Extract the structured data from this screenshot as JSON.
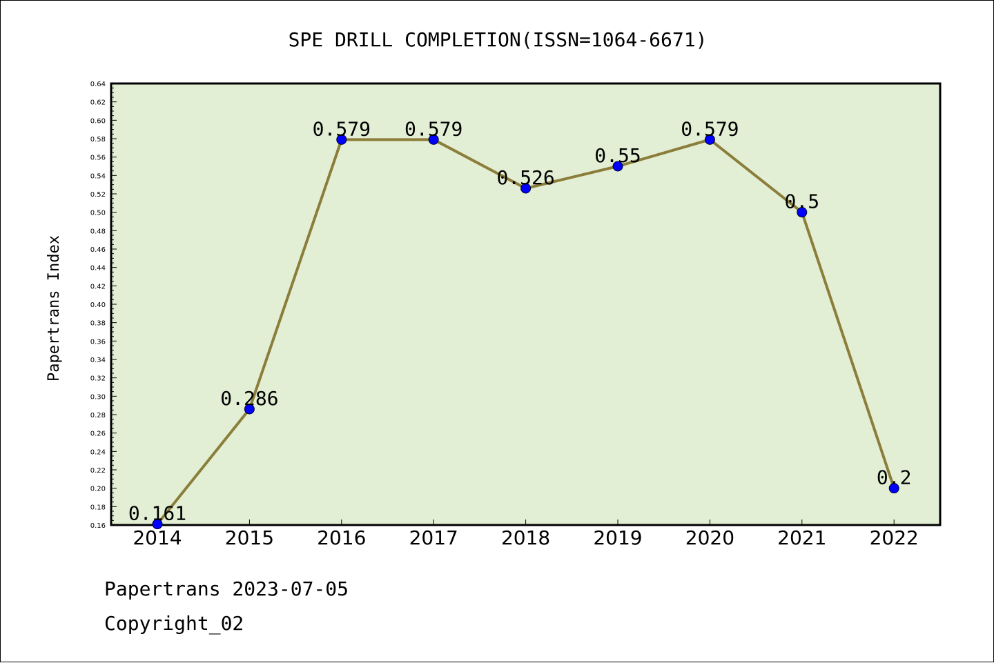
{
  "chart_data": {
    "type": "line",
    "title": "SPE DRILL COMPLETION(ISSN=1064-6671)",
    "xlabel": "",
    "ylabel": "Papertrans Index",
    "categories": [
      "2014",
      "2015",
      "2016",
      "2017",
      "2018",
      "2019",
      "2020",
      "2021",
      "2022"
    ],
    "series": [
      {
        "values": [
          0.161,
          0.286,
          0.579,
          0.579,
          0.526,
          0.55,
          0.579,
          0.5,
          0.2
        ],
        "labels": [
          "0.161",
          "0.286",
          "0.579",
          "0.579",
          "0.526",
          "0.55",
          "0.579",
          "0.5",
          "0.2"
        ]
      }
    ],
    "ylim": [
      0.16,
      0.64
    ],
    "yticks": [
      "0.16",
      "0.18",
      "0.20",
      "0.22",
      "0.24",
      "0.26",
      "0.28",
      "0.30",
      "0.32",
      "0.34",
      "0.36",
      "0.38",
      "0.40",
      "0.42",
      "0.44",
      "0.46",
      "0.48",
      "0.50",
      "0.52",
      "0.54",
      "0.56",
      "0.58",
      "0.60",
      "0.62",
      "0.64"
    ],
    "grid": false,
    "colors": {
      "plot_background": "#e2efd5",
      "line": "#8b7d3a",
      "marker": "#0000ff"
    }
  },
  "footer": {
    "date_line": "Papertrans 2023-07-05",
    "copyright": "Copyright_02"
  }
}
